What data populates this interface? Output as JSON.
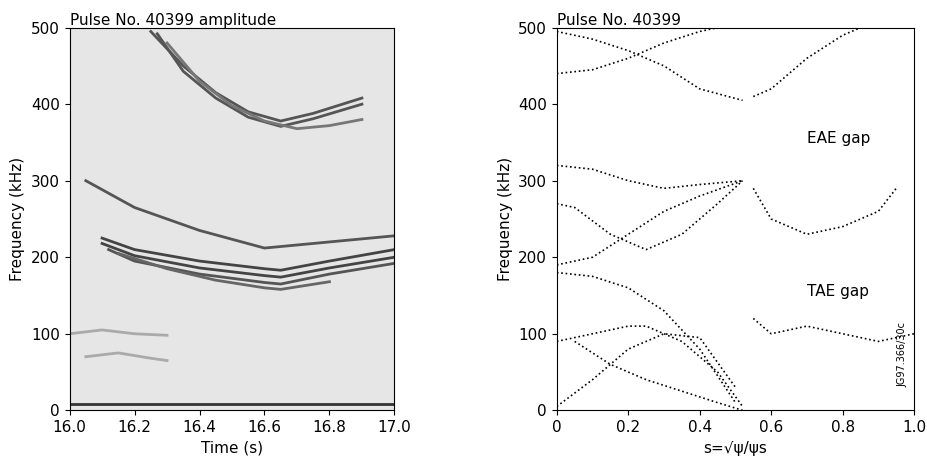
{
  "chart_data": [
    {
      "type": "line",
      "title": "Pulse No. 40399 amplitude",
      "x_label": "Time (s)",
      "y_label": "Frequency (kHz)",
      "xlim": [
        16.0,
        17.0
      ],
      "ylim": [
        0,
        500
      ],
      "xticks": [
        16.0,
        16.2,
        16.4,
        16.6,
        16.8,
        17.0
      ],
      "yticks": [
        0,
        100,
        200,
        300,
        400,
        500
      ],
      "color": "#e6e6e6",
      "series": [
        {
          "color": "#555555",
          "line_style": "solid",
          "x": [
            16.25,
            16.35,
            16.45,
            16.55,
            16.65,
            16.75,
            16.9
          ],
          "values": [
            495,
            450,
            415,
            390,
            378,
            388,
            408
          ]
        },
        {
          "color": "#555555",
          "line_style": "solid",
          "x": [
            16.27,
            16.35,
            16.45,
            16.55,
            16.65,
            16.75,
            16.9
          ],
          "values": [
            492,
            443,
            408,
            383,
            371,
            381,
            400
          ]
        },
        {
          "color": "#777777",
          "line_style": "solid",
          "x": [
            16.3,
            16.4,
            16.5,
            16.6,
            16.7,
            16.8,
            16.9
          ],
          "values": [
            480,
            430,
            398,
            378,
            368,
            372,
            380
          ]
        },
        {
          "color": "#555555",
          "line_style": "solid",
          "x": [
            16.05,
            16.2,
            16.4,
            16.6,
            16.8,
            17.0
          ],
          "values": [
            300,
            265,
            235,
            212,
            220,
            228
          ]
        },
        {
          "color": "#444444",
          "line_style": "solid",
          "x": [
            16.1,
            16.2,
            16.4,
            16.6,
            16.65,
            16.8,
            17.0
          ],
          "values": [
            225,
            210,
            195,
            185,
            183,
            195,
            210
          ]
        },
        {
          "color": "#444444",
          "line_style": "solid",
          "x": [
            16.1,
            16.2,
            16.4,
            16.6,
            16.65,
            16.8,
            17.0
          ],
          "values": [
            218,
            202,
            186,
            176,
            174,
            186,
            200
          ]
        },
        {
          "color": "#555555",
          "line_style": "solid",
          "x": [
            16.12,
            16.2,
            16.4,
            16.6,
            16.65,
            16.8,
            17.0
          ],
          "values": [
            210,
            195,
            178,
            167,
            165,
            178,
            192
          ]
        },
        {
          "color": "#666666",
          "line_style": "solid",
          "x": [
            16.15,
            16.3,
            16.45,
            16.6,
            16.65,
            16.8
          ],
          "values": [
            205,
            185,
            170,
            160,
            158,
            168
          ]
        },
        {
          "color": "#aaaaaa",
          "line_style": "solid",
          "x": [
            16.0,
            16.1,
            16.2,
            16.3
          ],
          "values": [
            100,
            105,
            100,
            98
          ]
        },
        {
          "color": "#aaaaaa",
          "line_style": "solid",
          "x": [
            16.05,
            16.15,
            16.25,
            16.3
          ],
          "values": [
            70,
            75,
            68,
            65
          ]
        },
        {
          "color": "#333333",
          "line_style": "solid",
          "x": [
            16.0,
            16.2,
            16.4,
            16.6,
            16.8,
            17.0
          ],
          "values": [
            8,
            8,
            8,
            8,
            8,
            8
          ]
        }
      ]
    },
    {
      "type": "line",
      "title": "Pulse No. 40399",
      "x_label": "s=√ψ/ψs",
      "y_label": "Frequency (kHz)",
      "xlim": [
        0,
        1.0
      ],
      "ylim": [
        0,
        500
      ],
      "xticks": [
        0,
        0.2,
        0.4,
        0.6,
        0.8,
        1.0
      ],
      "yticks": [
        0,
        100,
        200,
        300,
        400,
        500
      ],
      "color": "#ffffff",
      "annotations": [
        {
          "text": "EAE gap",
          "x": 0.7,
          "y": 355
        },
        {
          "text": "TAE gap",
          "x": 0.7,
          "y": 155
        }
      ],
      "credit": "JG97.366/30c",
      "series": [
        {
          "color": "#000000",
          "line_style": "dotted",
          "x": [
            0,
            0.1,
            0.2,
            0.3,
            0.4,
            0.5
          ],
          "values": [
            180,
            175,
            160,
            130,
            80,
            10
          ]
        },
        {
          "color": "#000000",
          "line_style": "dotted",
          "x": [
            0,
            0.1,
            0.2,
            0.25,
            0.35,
            0.45,
            0.52
          ],
          "values": [
            90,
            100,
            110,
            110,
            90,
            50,
            5
          ]
        },
        {
          "color": "#000000",
          "line_style": "dotted",
          "x": [
            0,
            0.1,
            0.2,
            0.3,
            0.4,
            0.5
          ],
          "values": [
            5,
            40,
            80,
            100,
            95,
            30
          ]
        },
        {
          "color": "#000000",
          "line_style": "dotted",
          "x": [
            0.05,
            0.15,
            0.25,
            0.35,
            0.45,
            0.52
          ],
          "values": [
            90,
            60,
            40,
            25,
            10,
            0
          ]
        },
        {
          "color": "#000000",
          "line_style": "dotted",
          "x": [
            0.55,
            0.6,
            0.7,
            0.8,
            0.9,
            1.0
          ],
          "values": [
            120,
            100,
            110,
            100,
            90,
            100
          ]
        },
        {
          "color": "#000000",
          "line_style": "dotted",
          "x": [
            0,
            0.1,
            0.2,
            0.3,
            0.4,
            0.52
          ],
          "values": [
            320,
            315,
            300,
            290,
            295,
            300
          ]
        },
        {
          "color": "#000000",
          "line_style": "dotted",
          "x": [
            0,
            0.1,
            0.2,
            0.3,
            0.4,
            0.52
          ],
          "values": [
            190,
            200,
            230,
            260,
            280,
            300
          ]
        },
        {
          "color": "#000000",
          "line_style": "dotted",
          "x": [
            0,
            0.05,
            0.15,
            0.25,
            0.35,
            0.45,
            0.52
          ],
          "values": [
            270,
            265,
            230,
            210,
            230,
            270,
            300
          ]
        },
        {
          "color": "#000000",
          "line_style": "dotted",
          "x": [
            0.55,
            0.6,
            0.7,
            0.8,
            0.9,
            0.95
          ],
          "values": [
            290,
            250,
            230,
            240,
            260,
            290
          ]
        },
        {
          "color": "#000000",
          "line_style": "dotted",
          "x": [
            0,
            0.1,
            0.2,
            0.3,
            0.4,
            0.52
          ],
          "values": [
            495,
            485,
            470,
            450,
            420,
            405
          ]
        },
        {
          "color": "#000000",
          "line_style": "dotted",
          "x": [
            0,
            0.1,
            0.2,
            0.3,
            0.4,
            0.45
          ],
          "values": [
            440,
            445,
            460,
            480,
            495,
            500
          ]
        },
        {
          "color": "#000000",
          "line_style": "dotted",
          "x": [
            0.55,
            0.6,
            0.7,
            0.8,
            0.85
          ],
          "values": [
            410,
            420,
            460,
            490,
            500
          ]
        }
      ]
    }
  ]
}
